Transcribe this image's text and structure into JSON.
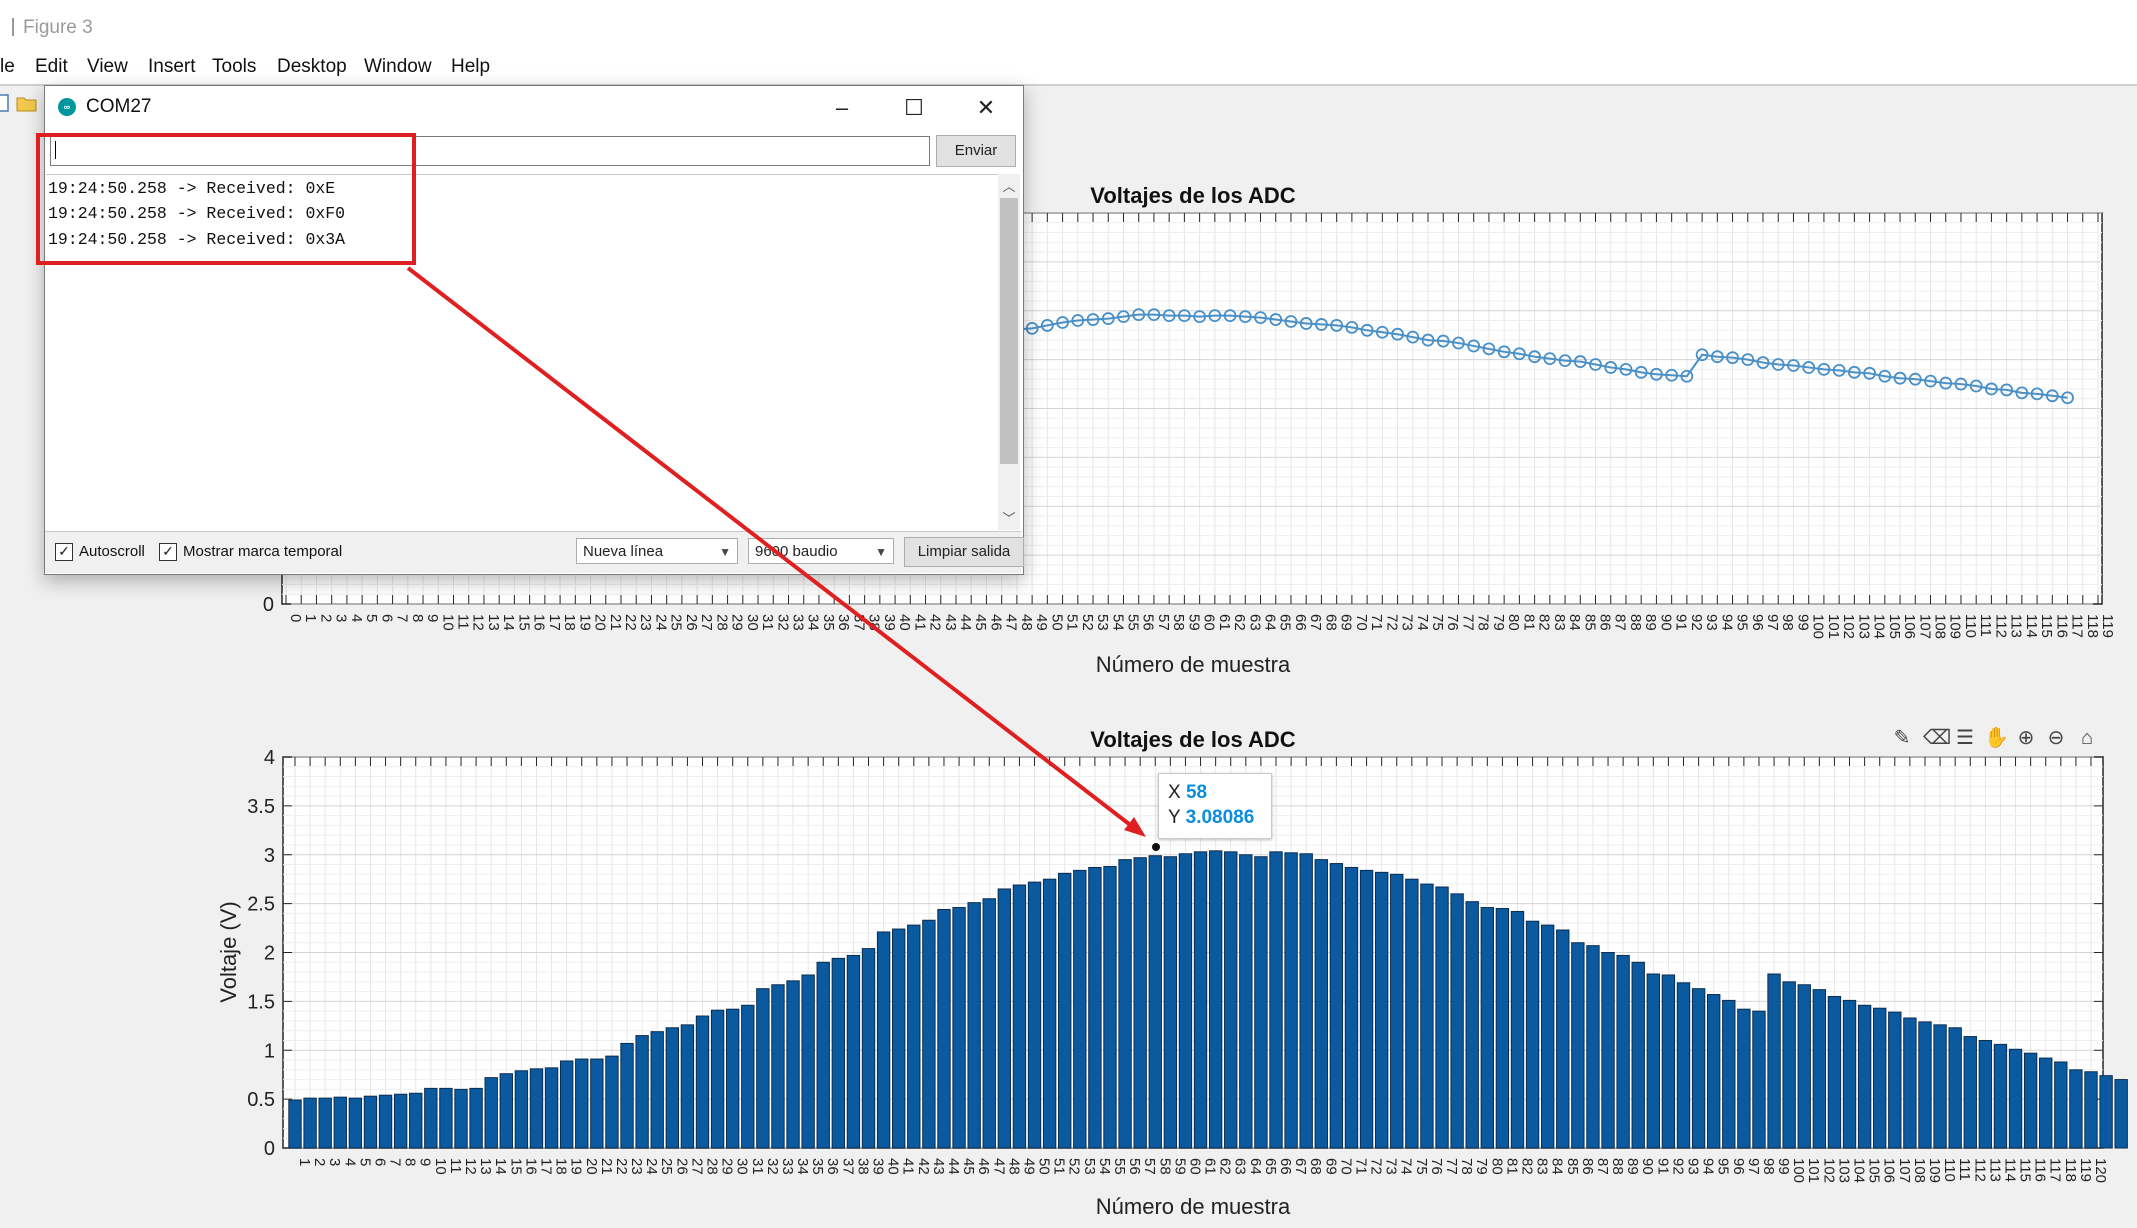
{
  "figure": {
    "title": "Figure 3",
    "menu": [
      "le",
      "Edit",
      "View",
      "Insert",
      "Tools",
      "Desktop",
      "Window",
      "Help"
    ]
  },
  "top_plot": {
    "title": "Voltajes de los ADC",
    "xlabel": "Número de muestra",
    "ytick_visible": "0"
  },
  "bottom_plot": {
    "title": "Voltajes de los ADC",
    "xlabel": "Número de muestra",
    "ylabel": "Voltaje (V)"
  },
  "plot_tools": [
    "brush-icon",
    "eraser-icon",
    "legend-icon",
    "pan-icon",
    "zoom-in-icon",
    "zoom-out-icon",
    "home-icon"
  ],
  "datatip": {
    "x_label": "X",
    "x_value": "58",
    "y_label": "Y",
    "y_value": "3.08086"
  },
  "serial_monitor": {
    "title": "COM27",
    "send_label": "Enviar",
    "input_value": "",
    "lines": [
      "19:24:50.258 -> Received: 0xE",
      "19:24:50.258 -> Received: 0xF0",
      "19:24:50.258 -> Received: 0x3A"
    ],
    "autoscroll_label": "Autoscroll",
    "autoscroll_checked": true,
    "timestamp_label": "Mostrar marca temporal",
    "timestamp_checked": true,
    "line_ending": "Nueva línea",
    "baud": "9600 baudio",
    "clear_label": "Limpiar salida"
  },
  "annotation_color": "#e02020",
  "bar_color": "#0b5aa0",
  "line_color": "#4a90c8",
  "chart_data": [
    {
      "type": "line",
      "title": "Voltajes de los ADC",
      "xlabel": "Número de muestra",
      "xlim": [
        0,
        119
      ],
      "ylim": [
        0,
        4
      ],
      "grid": true,
      "marker": "circle",
      "x_start": 48,
      "values": [
        2.81,
        2.82,
        2.85,
        2.88,
        2.9,
        2.91,
        2.92,
        2.94,
        2.96,
        2.96,
        2.95,
        2.95,
        2.94,
        2.95,
        2.95,
        2.94,
        2.93,
        2.91,
        2.89,
        2.87,
        2.86,
        2.85,
        2.83,
        2.8,
        2.78,
        2.76,
        2.73,
        2.7,
        2.69,
        2.67,
        2.64,
        2.61,
        2.58,
        2.56,
        2.53,
        2.51,
        2.49,
        2.48,
        2.45,
        2.42,
        2.4,
        2.37,
        2.35,
        2.34,
        2.33,
        2.55,
        2.53,
        2.52,
        2.5,
        2.47,
        2.45,
        2.44,
        2.42,
        2.4,
        2.39,
        2.37,
        2.36,
        2.33,
        2.31,
        2.3,
        2.28,
        2.26,
        2.25,
        2.23,
        2.2,
        2.19,
        2.16,
        2.15,
        2.13,
        2.11
      ]
    },
    {
      "type": "bar",
      "title": "Voltajes de los ADC",
      "xlabel": "Número de muestra",
      "ylabel": "Voltaje (V)",
      "xlim": [
        1,
        120
      ],
      "ylim": [
        0,
        4
      ],
      "grid": true,
      "categories_start": 1,
      "values": [
        0.49,
        0.51,
        0.51,
        0.52,
        0.51,
        0.53,
        0.54,
        0.55,
        0.56,
        0.61,
        0.61,
        0.6,
        0.61,
        0.72,
        0.76,
        0.79,
        0.81,
        0.82,
        0.89,
        0.91,
        0.91,
        0.94,
        1.07,
        1.15,
        1.19,
        1.23,
        1.26,
        1.35,
        1.41,
        1.42,
        1.46,
        1.63,
        1.67,
        1.71,
        1.77,
        1.9,
        1.94,
        1.97,
        2.04,
        2.21,
        2.24,
        2.28,
        2.33,
        2.44,
        2.46,
        2.51,
        2.55,
        2.65,
        2.69,
        2.72,
        2.75,
        2.81,
        2.84,
        2.87,
        2.88,
        2.95,
        2.97,
        2.99,
        2.98,
        3.01,
        3.03,
        3.04,
        3.03,
        3.0,
        2.98,
        3.03,
        3.02,
        3.01,
        2.95,
        2.91,
        2.87,
        2.84,
        2.82,
        2.8,
        2.75,
        2.7,
        2.67,
        2.6,
        2.52,
        2.46,
        2.45,
        2.42,
        2.32,
        2.28,
        2.23,
        2.1,
        2.07,
        2.0,
        1.97,
        1.9,
        1.78,
        1.77,
        1.69,
        1.63,
        1.57,
        1.51,
        1.42,
        1.4,
        1.78,
        1.7,
        1.67,
        1.62,
        1.55,
        1.51,
        1.46,
        1.43,
        1.39,
        1.33,
        1.29,
        1.26,
        1.23,
        1.14,
        1.1,
        1.06,
        1.01,
        0.97,
        0.92,
        0.88,
        0.8,
        0.78,
        0.74,
        0.7
      ]
    }
  ]
}
